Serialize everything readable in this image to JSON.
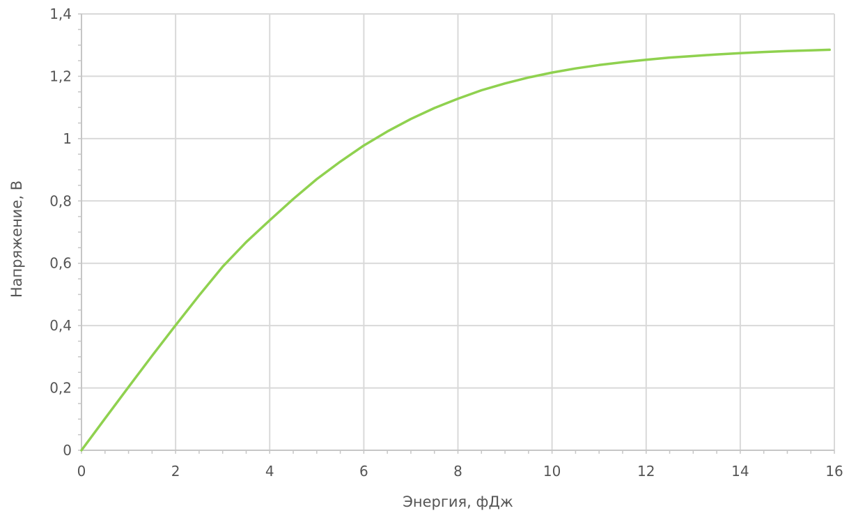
{
  "chart_data": {
    "type": "line",
    "title": "",
    "xlabel": "Энергия, фДж",
    "ylabel": "Напряжение, В",
    "xlim": [
      0,
      16
    ],
    "ylim": [
      0,
      1.4
    ],
    "x_ticks": [
      0,
      2,
      4,
      6,
      8,
      10,
      12,
      14,
      16
    ],
    "y_ticks": [
      0,
      0.2,
      0.4,
      0.6,
      0.8,
      1,
      1.2,
      1.4
    ],
    "x_tick_labels": [
      "0",
      "2",
      "4",
      "6",
      "8",
      "10",
      "12",
      "14",
      "16"
    ],
    "y_tick_labels": [
      "0",
      "0,2",
      "0,4",
      "0,6",
      "0,8",
      "1",
      "1,2",
      "1,4"
    ],
    "grid": true,
    "minor_ticks": true,
    "series": [
      {
        "color": "#8fd14f",
        "x": [
          0,
          0.5,
          1,
          1.5,
          2,
          2.5,
          3,
          3.5,
          4,
          4.5,
          5,
          5.5,
          6,
          6.5,
          7,
          7.5,
          8,
          8.5,
          9,
          9.5,
          10,
          10.5,
          11,
          11.5,
          12,
          12.5,
          13,
          13.5,
          14,
          14.5,
          15,
          15.5,
          15.9
        ],
        "y": [
          0,
          0.102,
          0.203,
          0.303,
          0.401,
          0.497,
          0.589,
          0.668,
          0.738,
          0.806,
          0.87,
          0.926,
          0.978,
          1.023,
          1.063,
          1.098,
          1.128,
          1.155,
          1.177,
          1.196,
          1.212,
          1.225,
          1.236,
          1.245,
          1.253,
          1.26,
          1.265,
          1.27,
          1.274,
          1.278,
          1.281,
          1.283,
          1.285
        ]
      }
    ]
  }
}
